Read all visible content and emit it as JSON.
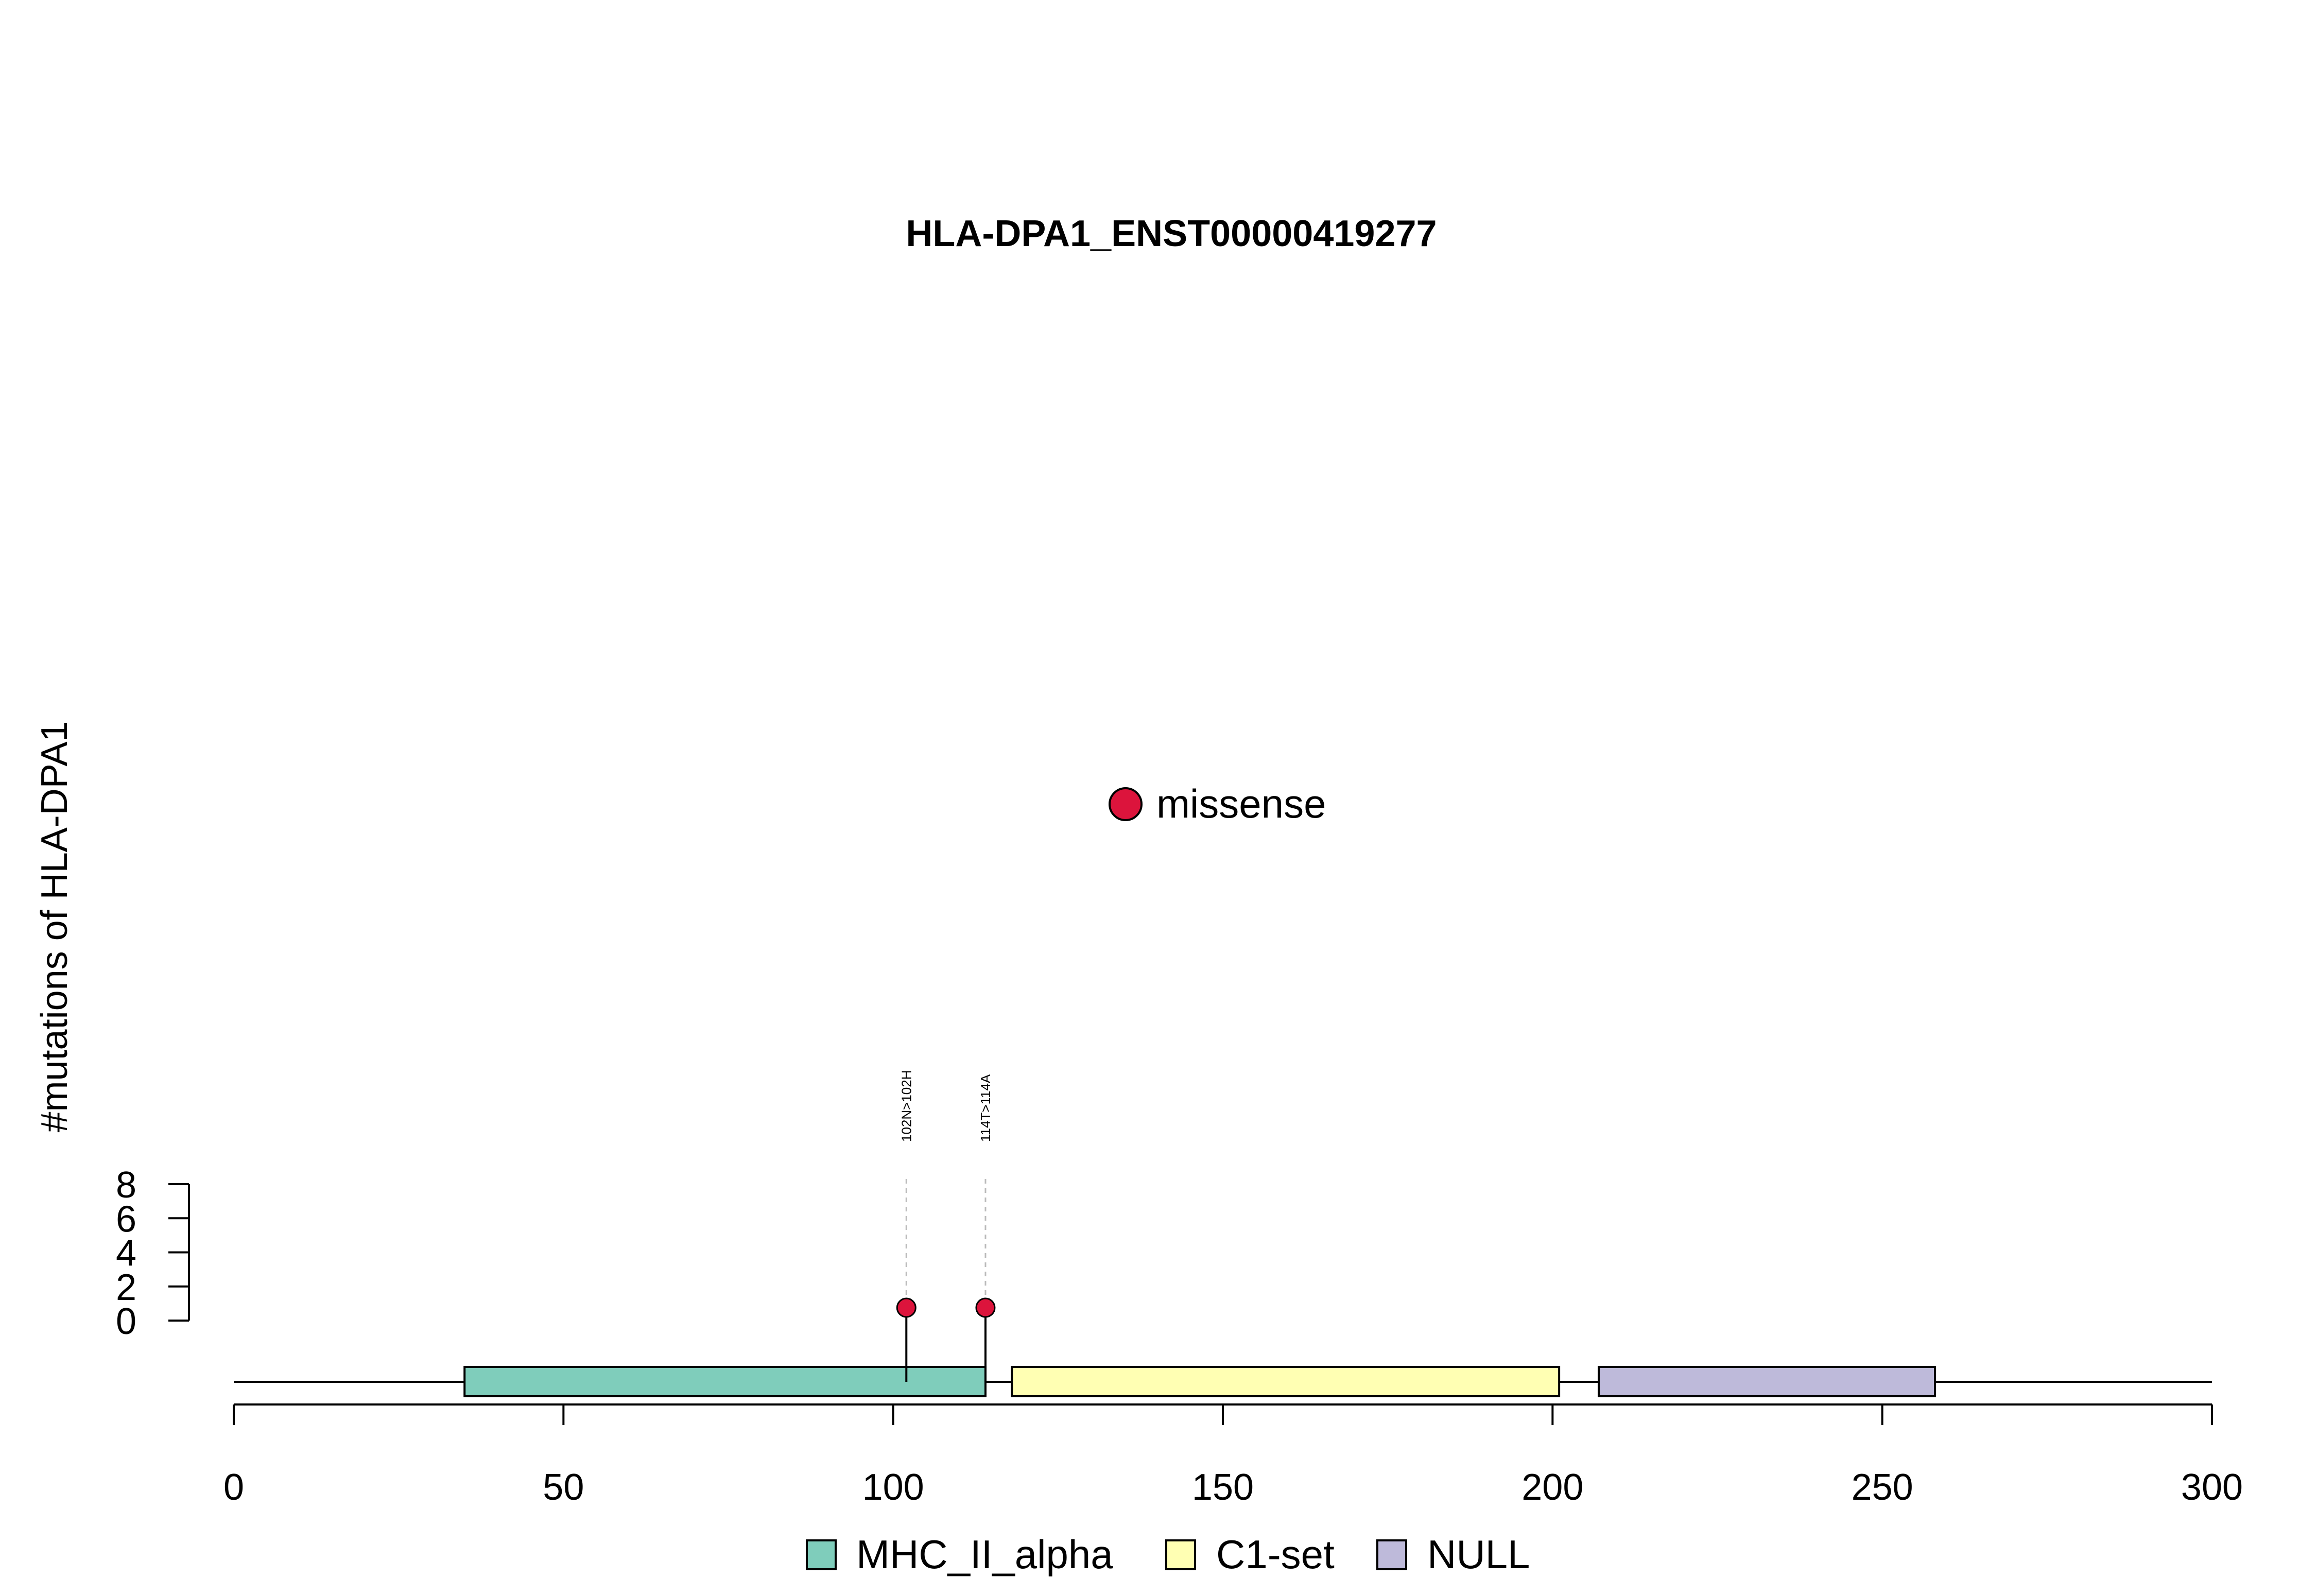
{
  "chart_data": {
    "type": "lollipop",
    "title": "HLA-DPA1_ENST00000419277",
    "xlabel": "",
    "ylabel": "#mutations of HLA-DPA1",
    "xlim": [
      0,
      300
    ],
    "ylim": [
      0,
      8
    ],
    "x_ticks": [
      "0",
      "50",
      "100",
      "150",
      "200",
      "250",
      "300"
    ],
    "y_ticks": [
      "0",
      "2",
      "4",
      "6",
      "8"
    ],
    "legend_top": [
      {
        "label": "missense",
        "color": "#DC143C"
      }
    ],
    "domains": [
      {
        "name": "MHC_II_alpha",
        "start": 35,
        "end": 114,
        "color": "#7FCDBB"
      },
      {
        "name": "C1-set",
        "start": 118,
        "end": 201,
        "color": "#FFFFB3"
      },
      {
        "name": "NULL",
        "start": 207,
        "end": 258,
        "color": "#BEBADA"
      }
    ],
    "mutations": [
      {
        "position": 102,
        "count": 1,
        "label": "102N>102H",
        "type": "missense",
        "color": "#DC143C"
      },
      {
        "position": 114,
        "count": 1,
        "label": "114T>114A",
        "type": "missense",
        "color": "#DC143C"
      }
    ]
  }
}
